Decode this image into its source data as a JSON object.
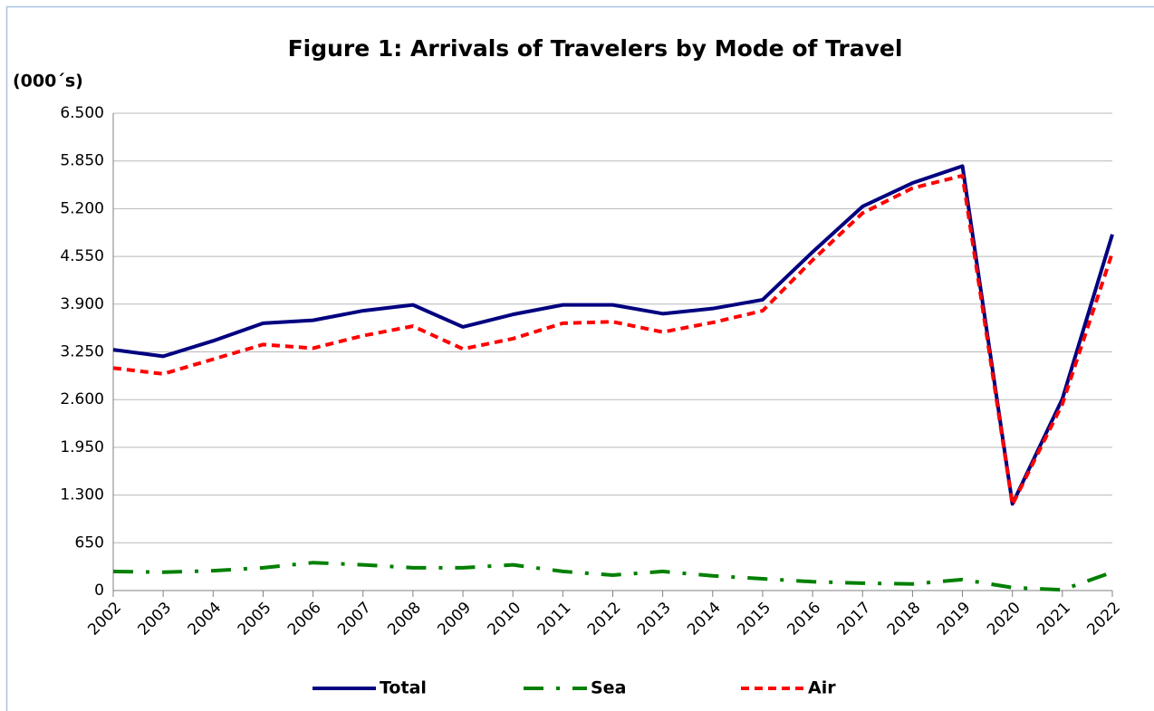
{
  "chart_data": {
    "type": "line",
    "title": "Figure 1: Arrivals of Travelers by Mode of Travel",
    "y_label": "(000´s)",
    "categories": [
      "2002",
      "2003",
      "2004",
      "2005",
      "2006",
      "2007",
      "2008",
      "2009",
      "2010",
      "2011",
      "2012",
      "2013",
      "2014",
      "2015",
      "2016",
      "2017",
      "2018",
      "2019",
      "2020",
      "2021",
      "2022"
    ],
    "series": [
      {
        "name": "Total",
        "color": "#000080",
        "dash": "solid",
        "values": [
          3280,
          3190,
          3400,
          3640,
          3680,
          3810,
          3890,
          3590,
          3760,
          3890,
          3890,
          3770,
          3840,
          3960,
          4610,
          5230,
          5550,
          5780,
          1180,
          2610,
          4850
        ]
      },
      {
        "name": "Sea",
        "color": "#008000",
        "dash": "dash-dot",
        "values": [
          260,
          250,
          270,
          310,
          380,
          350,
          310,
          310,
          350,
          260,
          210,
          260,
          200,
          160,
          120,
          100,
          90,
          150,
          40,
          10,
          250
        ]
      },
      {
        "name": "Air",
        "color": "#ff0000",
        "dash": "dashed",
        "values": [
          3030,
          2950,
          3150,
          3350,
          3300,
          3470,
          3600,
          3290,
          3430,
          3640,
          3660,
          3520,
          3650,
          3810,
          4500,
          5140,
          5480,
          5650,
          1170,
          2540,
          4600
        ]
      }
    ],
    "ylim": [
      0,
      6500
    ],
    "yticks": [
      0,
      650,
      {
        "value": 1300,
        "label": "1.300"
      },
      {
        "value": 1950,
        "label": "1.950"
      },
      {
        "value": 2600,
        "label": "2.600"
      },
      {
        "value": 3250,
        "label": "3.250"
      },
      {
        "value": 3900,
        "label": "3.900"
      },
      {
        "value": 4550,
        "label": "4.550"
      },
      {
        "value": 5200,
        "label": "5.200"
      },
      {
        "value": 5850,
        "label": "5.850"
      },
      {
        "value": 6500,
        "label": "6.500"
      }
    ],
    "grid": true,
    "legend": "bottom"
  }
}
